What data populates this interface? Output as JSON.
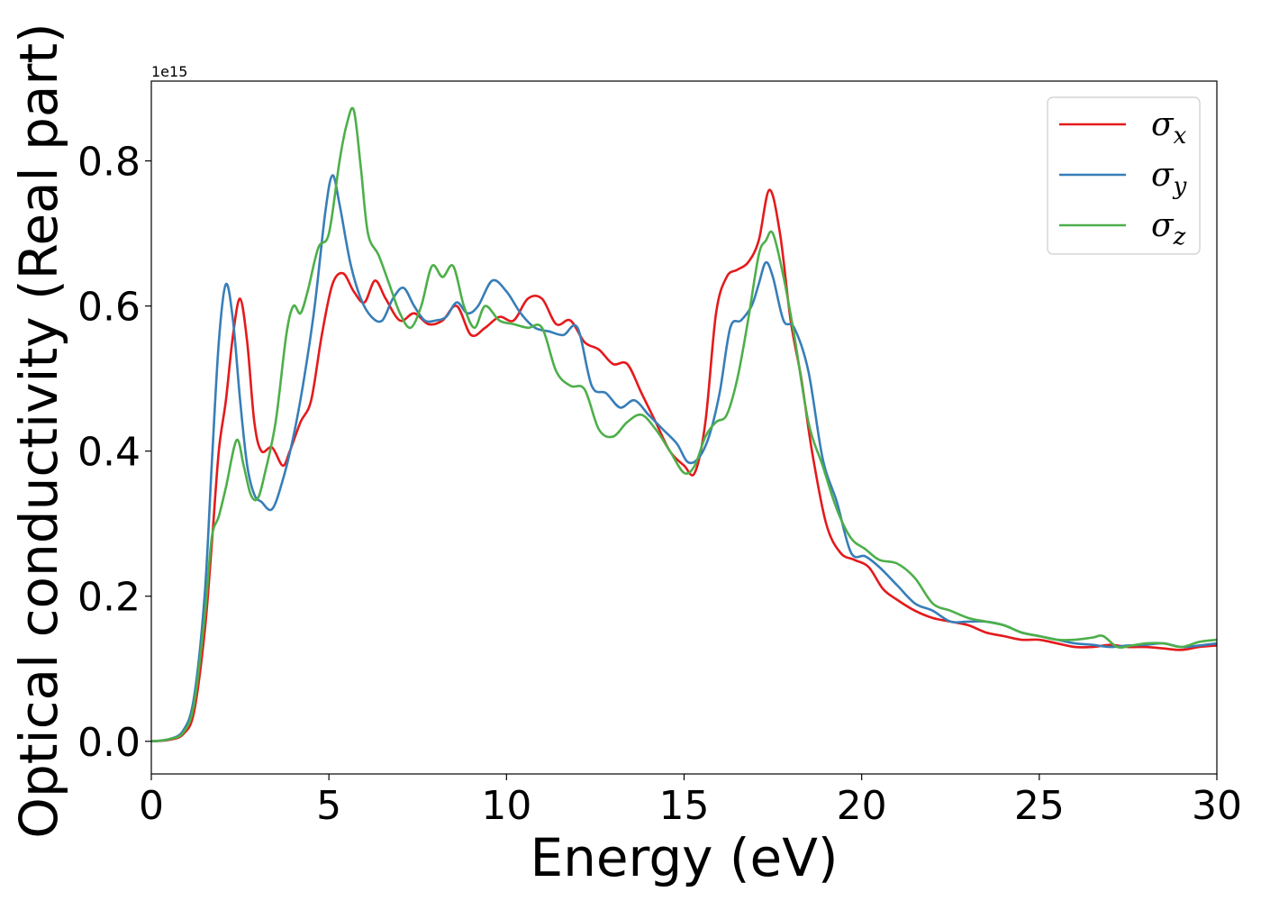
{
  "chart_data": {
    "type": "line",
    "xlabel": "Energy (eV)",
    "ylabel": "Optical conductivity (Real part)",
    "y_offset_label": "1e15",
    "xlim": [
      0,
      30
    ],
    "ylim": [
      -0.045,
      0.91
    ],
    "xticks": [
      0,
      5,
      10,
      15,
      20,
      25,
      30
    ],
    "xtick_labels": [
      "0",
      "5",
      "10",
      "15",
      "20",
      "25",
      "30"
    ],
    "yticks": [
      0.0,
      0.2,
      0.4,
      0.6,
      0.8
    ],
    "ytick_labels": [
      "0.0",
      "0.2",
      "0.4",
      "0.6",
      "0.8"
    ],
    "grid": false,
    "legend_position": "top-right",
    "series": [
      {
        "name": "σx",
        "symbol": "σ",
        "subscript": "x",
        "color": "#e41a1c",
        "x": [
          0,
          0.5,
          0.9,
          1.2,
          1.5,
          1.7,
          1.9,
          2.1,
          2.3,
          2.5,
          2.7,
          2.9,
          3.1,
          3.4,
          3.7,
          3.9,
          4.2,
          4.5,
          4.8,
          5.1,
          5.4,
          5.7,
          6.0,
          6.3,
          6.6,
          7.0,
          7.4,
          7.8,
          8.2,
          8.6,
          9.0,
          9.4,
          9.8,
          10.2,
          10.6,
          11.0,
          11.4,
          11.8,
          12.2,
          12.6,
          13.0,
          13.4,
          13.8,
          14.2,
          14.6,
          15.0,
          15.3,
          15.6,
          15.9,
          16.2,
          16.5,
          16.8,
          17.1,
          17.4,
          17.7,
          18.0,
          18.3,
          18.6,
          19.0,
          19.4,
          19.8,
          20.2,
          20.6,
          21.0,
          21.5,
          22.0,
          22.5,
          23.0,
          23.5,
          24.0,
          24.5,
          25.0,
          25.5,
          26.0,
          26.5,
          27.0,
          27.5,
          28.0,
          28.5,
          29.0,
          29.5,
          30.0
        ],
        "y": [
          0.0,
          0.002,
          0.01,
          0.04,
          0.15,
          0.27,
          0.4,
          0.47,
          0.56,
          0.61,
          0.55,
          0.44,
          0.4,
          0.405,
          0.38,
          0.4,
          0.44,
          0.47,
          0.56,
          0.63,
          0.645,
          0.62,
          0.605,
          0.635,
          0.61,
          0.58,
          0.59,
          0.575,
          0.58,
          0.6,
          0.56,
          0.57,
          0.585,
          0.58,
          0.61,
          0.61,
          0.575,
          0.58,
          0.55,
          0.54,
          0.52,
          0.52,
          0.48,
          0.44,
          0.4,
          0.38,
          0.37,
          0.44,
          0.59,
          0.64,
          0.65,
          0.66,
          0.69,
          0.76,
          0.7,
          0.58,
          0.5,
          0.4,
          0.3,
          0.26,
          0.25,
          0.24,
          0.21,
          0.195,
          0.18,
          0.17,
          0.165,
          0.16,
          0.15,
          0.145,
          0.14,
          0.14,
          0.135,
          0.13,
          0.13,
          0.133,
          0.13,
          0.13,
          0.128,
          0.126,
          0.13,
          0.132
        ]
      },
      {
        "name": "σy",
        "symbol": "σ",
        "subscript": "y",
        "color": "#377eb8",
        "x": [
          0,
          0.5,
          0.9,
          1.2,
          1.5,
          1.7,
          1.9,
          2.1,
          2.3,
          2.5,
          2.7,
          2.9,
          3.1,
          3.4,
          3.7,
          4.0,
          4.3,
          4.6,
          4.9,
          5.1,
          5.3,
          5.6,
          5.9,
          6.2,
          6.5,
          6.8,
          7.1,
          7.4,
          7.7,
          8.0,
          8.3,
          8.6,
          8.9,
          9.2,
          9.6,
          10.0,
          10.4,
          10.8,
          11.2,
          11.6,
          12.0,
          12.4,
          12.8,
          13.2,
          13.6,
          14.0,
          14.4,
          14.8,
          15.1,
          15.4,
          15.7,
          16.0,
          16.3,
          16.6,
          16.9,
          17.1,
          17.3,
          17.5,
          17.8,
          18.1,
          18.5,
          18.9,
          19.3,
          19.7,
          20.1,
          20.5,
          21.0,
          21.5,
          22.0,
          22.5,
          23.0,
          23.5,
          24.0,
          24.5,
          25.0,
          25.5,
          26.0,
          26.5,
          27.0,
          27.5,
          28.0,
          28.5,
          29.0,
          29.5,
          30.0
        ],
        "y": [
          0.0,
          0.003,
          0.015,
          0.06,
          0.2,
          0.38,
          0.55,
          0.63,
          0.58,
          0.47,
          0.38,
          0.34,
          0.33,
          0.32,
          0.36,
          0.42,
          0.5,
          0.6,
          0.73,
          0.78,
          0.74,
          0.66,
          0.61,
          0.585,
          0.58,
          0.61,
          0.625,
          0.6,
          0.58,
          0.58,
          0.585,
          0.605,
          0.59,
          0.6,
          0.635,
          0.62,
          0.59,
          0.57,
          0.565,
          0.56,
          0.57,
          0.49,
          0.48,
          0.46,
          0.47,
          0.45,
          0.43,
          0.41,
          0.385,
          0.39,
          0.42,
          0.48,
          0.57,
          0.58,
          0.6,
          0.63,
          0.66,
          0.64,
          0.58,
          0.57,
          0.51,
          0.39,
          0.33,
          0.26,
          0.255,
          0.24,
          0.215,
          0.19,
          0.18,
          0.165,
          0.165,
          0.165,
          0.16,
          0.15,
          0.145,
          0.14,
          0.135,
          0.133,
          0.13,
          0.132,
          0.133,
          0.135,
          0.13,
          0.132,
          0.135
        ]
      },
      {
        "name": "σz",
        "symbol": "σ",
        "subscript": "z",
        "color": "#4daf4a",
        "x": [
          0,
          0.5,
          0.9,
          1.2,
          1.5,
          1.7,
          1.9,
          2.1,
          2.4,
          2.6,
          2.8,
          3.0,
          3.2,
          3.5,
          3.8,
          4.0,
          4.2,
          4.4,
          4.7,
          5.0,
          5.3,
          5.5,
          5.7,
          5.9,
          6.1,
          6.4,
          6.7,
          7.0,
          7.3,
          7.6,
          7.9,
          8.2,
          8.5,
          8.8,
          9.1,
          9.4,
          9.8,
          10.2,
          10.6,
          11.0,
          11.4,
          11.8,
          12.2,
          12.6,
          13.0,
          13.4,
          13.8,
          14.2,
          14.6,
          15.0,
          15.3,
          15.6,
          15.9,
          16.2,
          16.5,
          16.8,
          17.1,
          17.3,
          17.5,
          17.8,
          18.1,
          18.5,
          18.9,
          19.3,
          19.7,
          20.1,
          20.5,
          21.0,
          21.5,
          22.0,
          22.5,
          23.0,
          23.5,
          24.0,
          24.5,
          25.0,
          25.5,
          26.0,
          26.5,
          26.8,
          27.2,
          27.6,
          28.0,
          28.5,
          29.0,
          29.5,
          30.0
        ],
        "y": [
          0.0,
          0.003,
          0.012,
          0.05,
          0.17,
          0.28,
          0.31,
          0.35,
          0.415,
          0.38,
          0.34,
          0.335,
          0.37,
          0.44,
          0.56,
          0.6,
          0.59,
          0.62,
          0.68,
          0.7,
          0.8,
          0.85,
          0.87,
          0.79,
          0.7,
          0.67,
          0.63,
          0.59,
          0.57,
          0.6,
          0.655,
          0.64,
          0.655,
          0.6,
          0.57,
          0.6,
          0.58,
          0.575,
          0.57,
          0.57,
          0.51,
          0.49,
          0.485,
          0.43,
          0.42,
          0.44,
          0.45,
          0.43,
          0.4,
          0.37,
          0.38,
          0.42,
          0.44,
          0.45,
          0.5,
          0.58,
          0.67,
          0.69,
          0.7,
          0.64,
          0.56,
          0.44,
          0.38,
          0.32,
          0.28,
          0.265,
          0.25,
          0.245,
          0.225,
          0.19,
          0.18,
          0.17,
          0.165,
          0.16,
          0.15,
          0.145,
          0.14,
          0.14,
          0.143,
          0.145,
          0.13,
          0.132,
          0.135,
          0.135,
          0.13,
          0.137,
          0.14
        ]
      }
    ]
  }
}
